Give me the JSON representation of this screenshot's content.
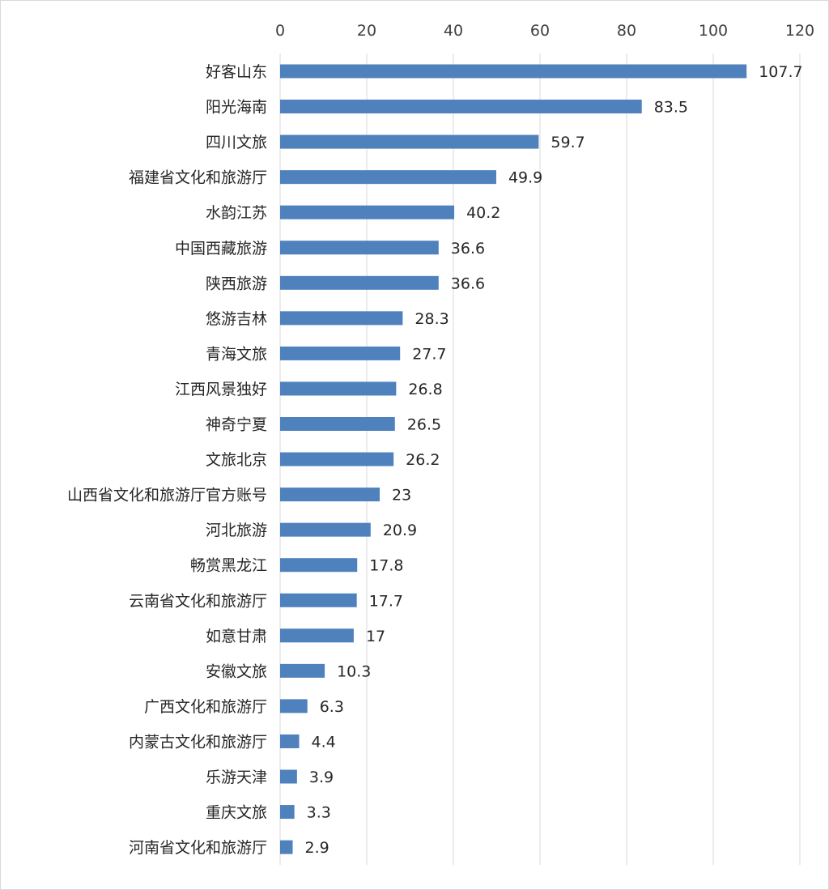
{
  "chart_data": {
    "type": "bar",
    "orientation": "horizontal",
    "xaxis_position": "top",
    "categories": [
      "好客山东",
      "阳光海南",
      "四川文旅",
      "福建省文化和旅游厅",
      "水韵江苏",
      "中国西藏旅游",
      "陕西旅游",
      "悠游吉林",
      "青海文旅",
      "江西风景独好",
      "神奇宁夏",
      "文旅北京",
      "山西省文化和旅游厅官方账号",
      "河北旅游",
      "畅赏黑龙江",
      "云南省文化和旅游厅",
      "如意甘肃",
      "安徽文旅",
      "广西文化和旅游厅",
      "内蒙古文化和旅游厅",
      "乐游天津",
      "重庆文旅",
      "河南省文化和旅游厅"
    ],
    "values": [
      107.7,
      83.5,
      59.7,
      49.9,
      40.2,
      36.6,
      36.6,
      28.3,
      27.7,
      26.8,
      26.5,
      26.2,
      23,
      20.9,
      17.8,
      17.7,
      17,
      10.3,
      6.3,
      4.4,
      3.9,
      3.3,
      2.9
    ],
    "value_labels": [
      "107.7",
      "83.5",
      "59.7",
      "49.9",
      "40.2",
      "36.6",
      "36.6",
      "28.3",
      "27.7",
      "26.8",
      "26.5",
      "26.2",
      "23",
      "20.9",
      "17.8",
      "17.7",
      "17",
      "10.3",
      "6.3",
      "4.4",
      "3.9",
      "3.3",
      "2.9"
    ],
    "xlim": [
      0,
      120
    ],
    "xticks": [
      "0",
      "20",
      "40",
      "60",
      "80",
      "100",
      "120"
    ],
    "grid": "vertical",
    "bar_color": "#4F81BD",
    "grid_color": "#D9D9D9"
  }
}
